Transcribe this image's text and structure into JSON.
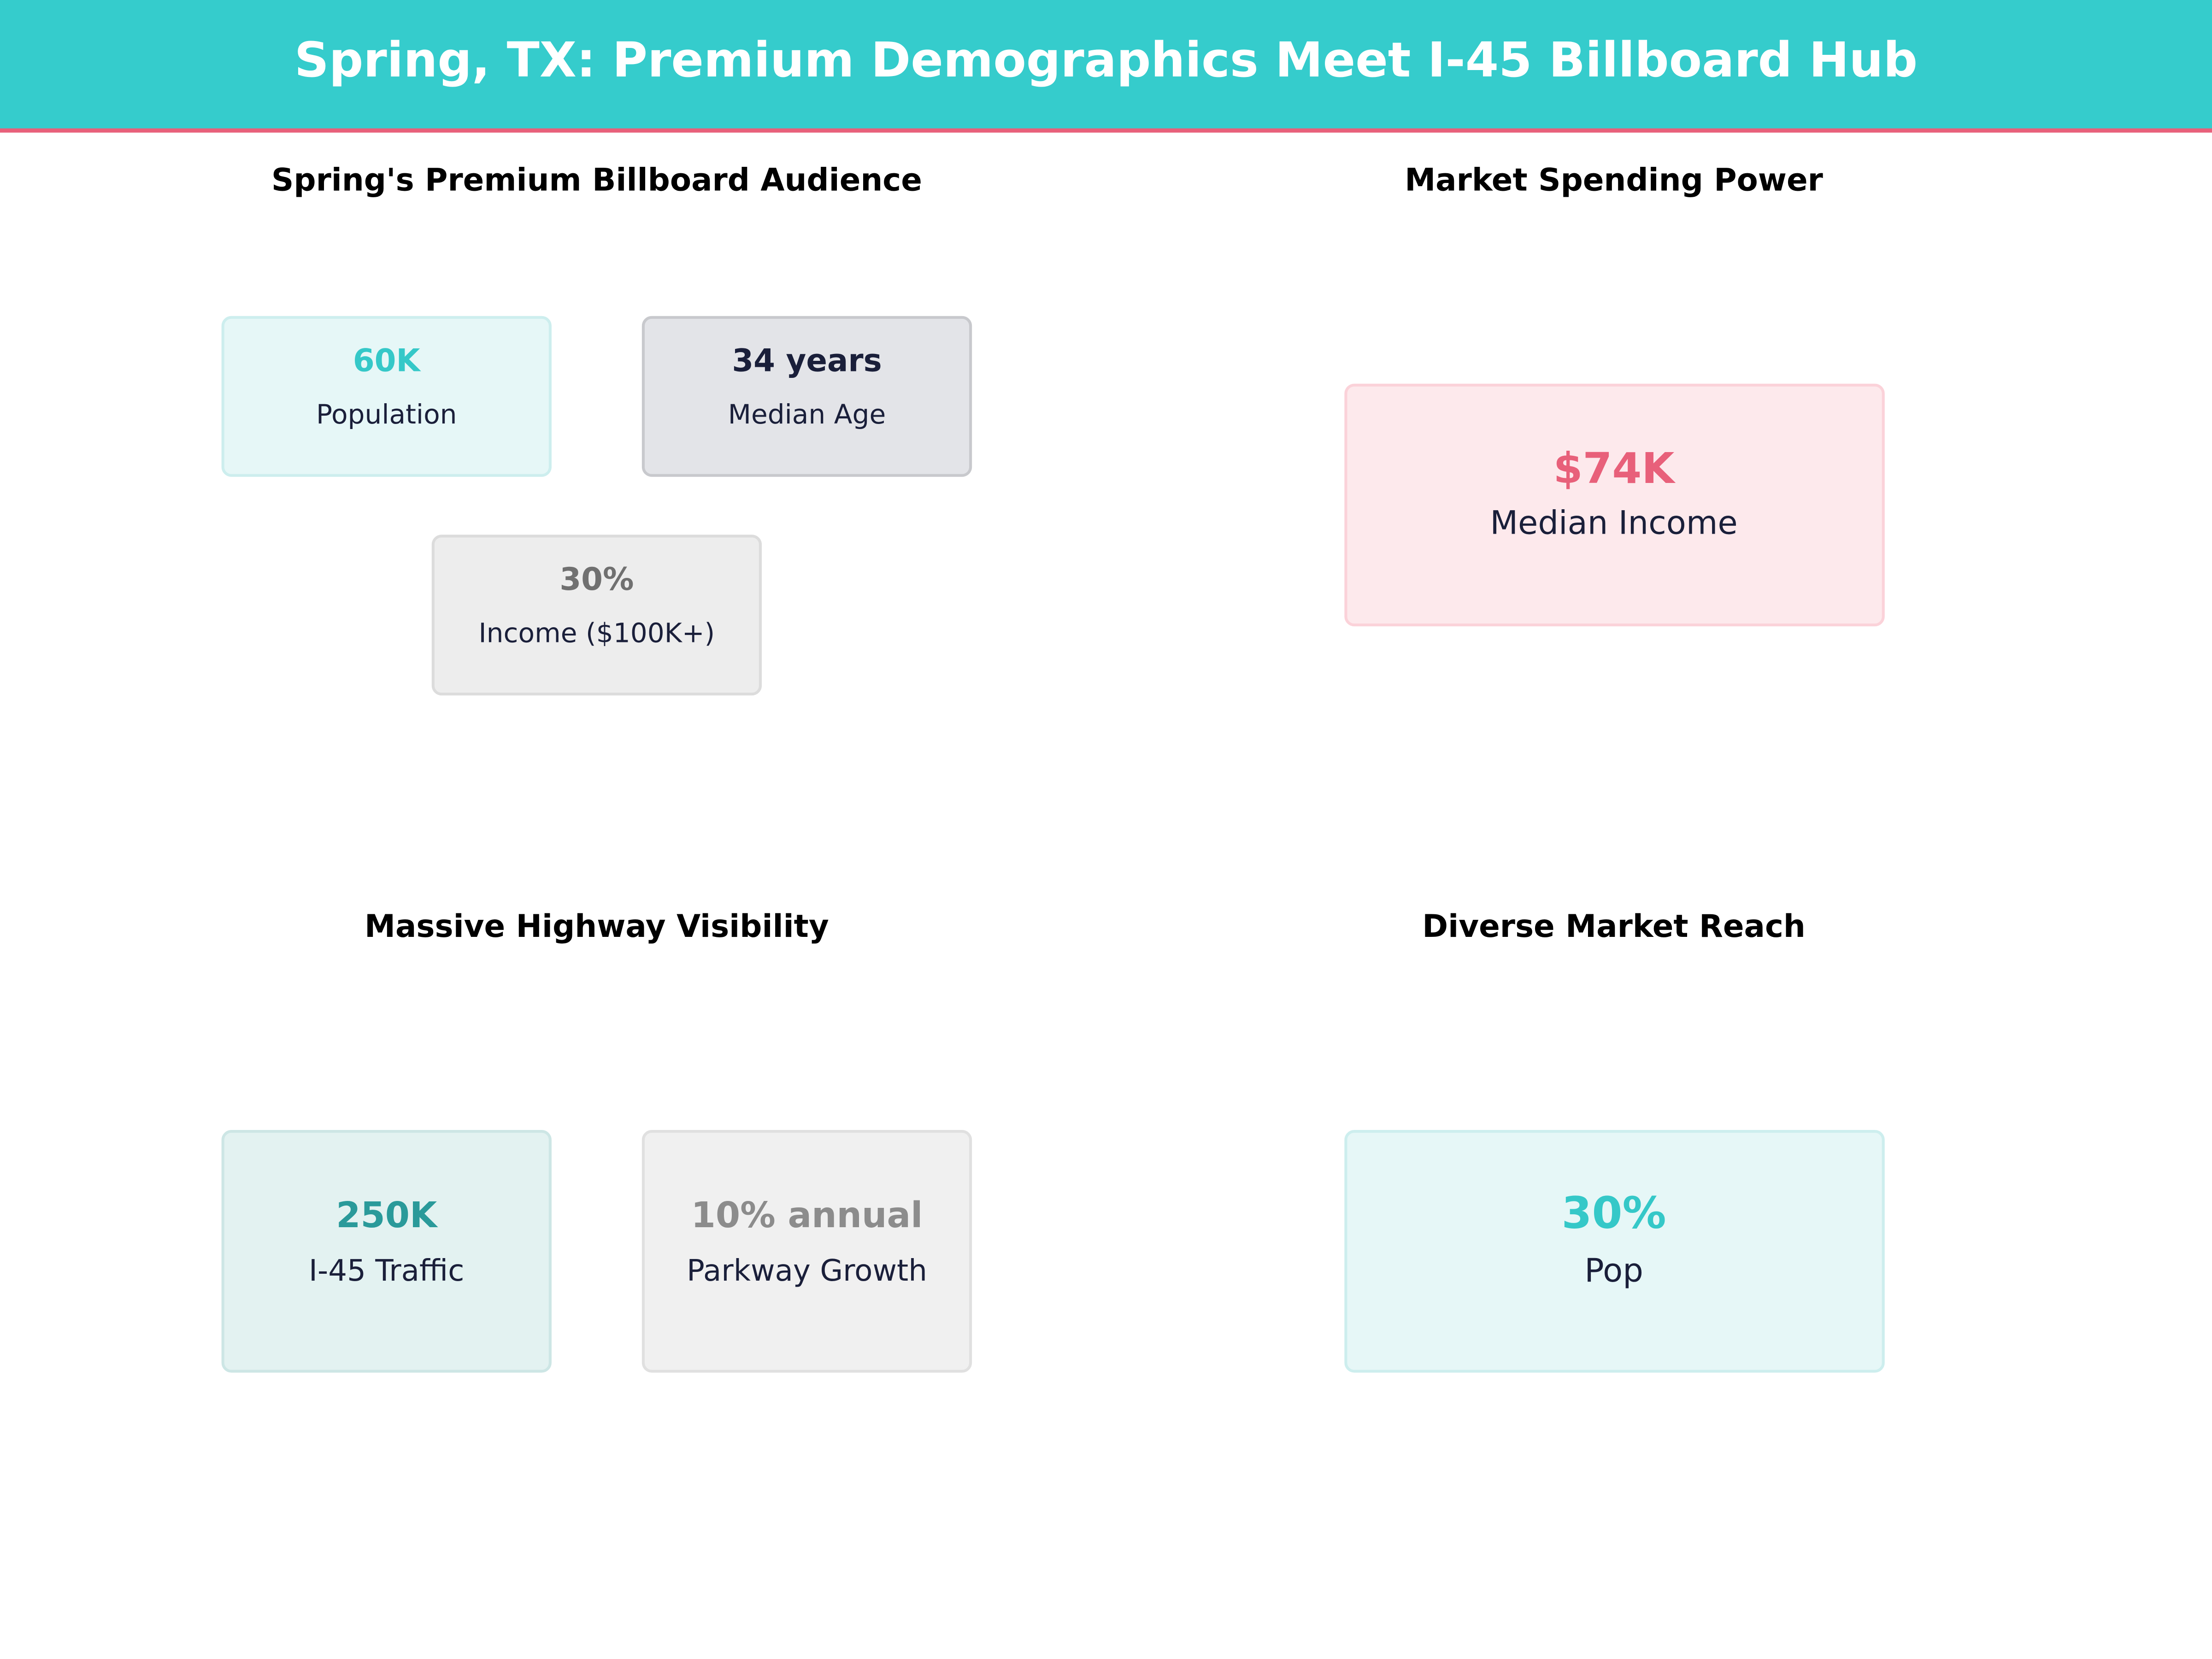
{
  "header": {
    "title": "Spring, TX: Premium Demographics Meet I-45 Billboard Hub"
  },
  "panels": [
    {
      "title": "Spring's Premium Billboard Audience",
      "cards": [
        {
          "value": "60K",
          "label": "Population"
        },
        {
          "value": "34 years",
          "label": "Median Age"
        },
        {
          "value": "30%",
          "label": "Income ($100K+)"
        }
      ]
    },
    {
      "title": "Market Spending Power",
      "cards": [
        {
          "value": "$74K",
          "label": "Median Income"
        }
      ]
    },
    {
      "title": "Massive Highway Visibility",
      "cards": [
        {
          "value": "250K",
          "label": "I-45 Traffic"
        },
        {
          "value": "10% annual",
          "label": "Parkway Growth"
        }
      ]
    },
    {
      "title": "Diverse Market Reach",
      "cards": [
        {
          "value": "30%",
          "label": "Pop"
        }
      ]
    }
  ]
}
